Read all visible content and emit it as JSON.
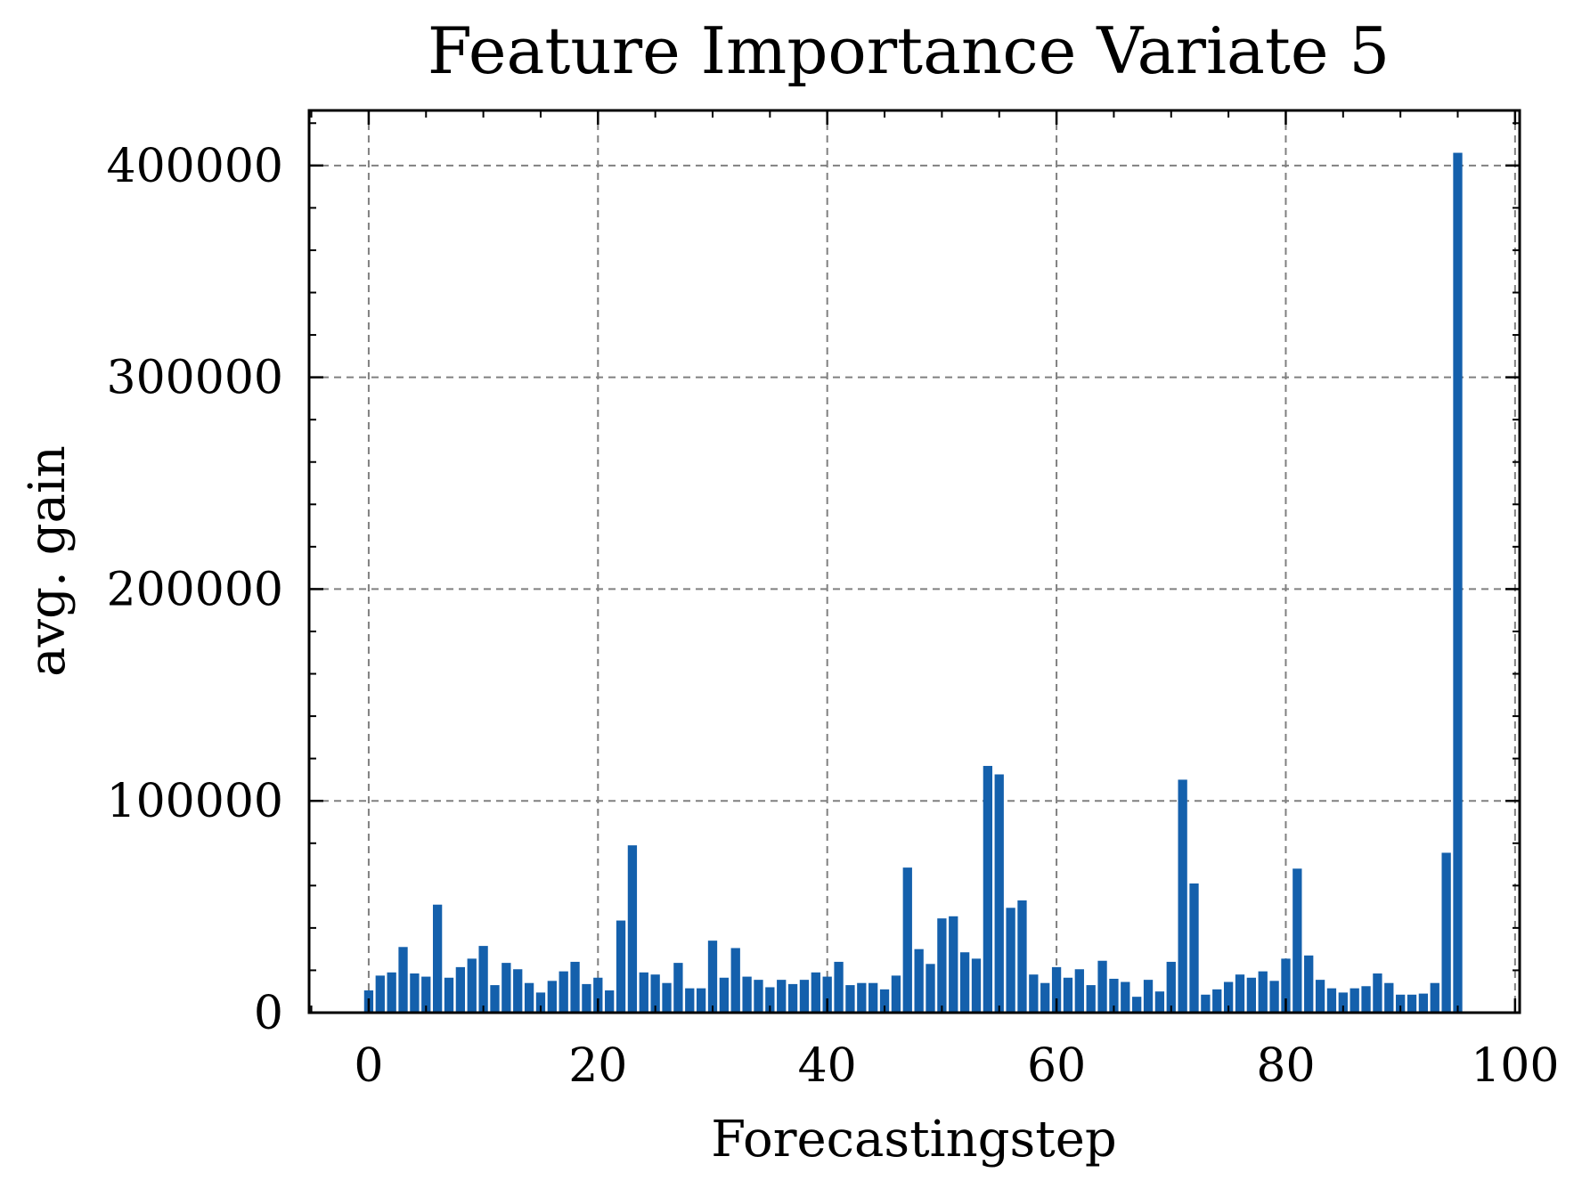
{
  "chart_data": {
    "type": "bar",
    "title": "Feature Importance Variate 5",
    "xlabel": "Forecastingstep",
    "ylabel": "avg. gain",
    "xlim": [
      -5.2,
      100.4
    ],
    "ylim": [
      0,
      426000
    ],
    "xticks": [
      0,
      20,
      40,
      60,
      80,
      100
    ],
    "xtick_labels": [
      "0",
      "20",
      "40",
      "60",
      "80",
      "100"
    ],
    "yticks": [
      0,
      100000,
      200000,
      300000,
      400000
    ],
    "ytick_labels": [
      "0",
      "100000",
      "200000",
      "300000",
      "400000"
    ],
    "grid": true,
    "bar_color": "#1460ac",
    "x": [
      0,
      1,
      2,
      3,
      4,
      5,
      6,
      7,
      8,
      9,
      10,
      11,
      12,
      13,
      14,
      15,
      16,
      17,
      18,
      19,
      20,
      21,
      22,
      23,
      24,
      25,
      26,
      27,
      28,
      29,
      30,
      31,
      32,
      33,
      34,
      35,
      36,
      37,
      38,
      39,
      40,
      41,
      42,
      43,
      44,
      45,
      46,
      47,
      48,
      49,
      50,
      51,
      52,
      53,
      54,
      55,
      56,
      57,
      58,
      59,
      60,
      61,
      62,
      63,
      64,
      65,
      66,
      67,
      68,
      69,
      70,
      71,
      72,
      73,
      74,
      75,
      76,
      77,
      78,
      79,
      80,
      81,
      82,
      83,
      84,
      85,
      86,
      87,
      88,
      89,
      90,
      91,
      92,
      93,
      94,
      95
    ],
    "values": [
      10500,
      17500,
      19000,
      31000,
      18500,
      17000,
      51000,
      16500,
      21500,
      25500,
      31500,
      13000,
      23500,
      20500,
      14000,
      9500,
      15000,
      19500,
      24000,
      13500,
      16500,
      10500,
      43500,
      79000,
      19000,
      18000,
      14000,
      23500,
      11500,
      11500,
      34000,
      16500,
      30500,
      17000,
      15500,
      12000,
      15500,
      13500,
      15500,
      19000,
      17000,
      24000,
      13000,
      14000,
      14000,
      11000,
      17500,
      68500,
      30000,
      23000,
      44500,
      45500,
      28500,
      25500,
      116500,
      112500,
      49500,
      53000,
      18000,
      14000,
      21500,
      16500,
      20500,
      13000,
      24500,
      16000,
      14500,
      7500,
      15500,
      10000,
      24000,
      110000,
      61000,
      8500,
      11000,
      14500,
      18000,
      16500,
      19500,
      15000,
      25500,
      68000,
      27000,
      15500,
      11500,
      9500,
      11500,
      12500,
      18500,
      14000,
      8500,
      8500,
      9000,
      14000,
      75500,
      406000
    ]
  }
}
